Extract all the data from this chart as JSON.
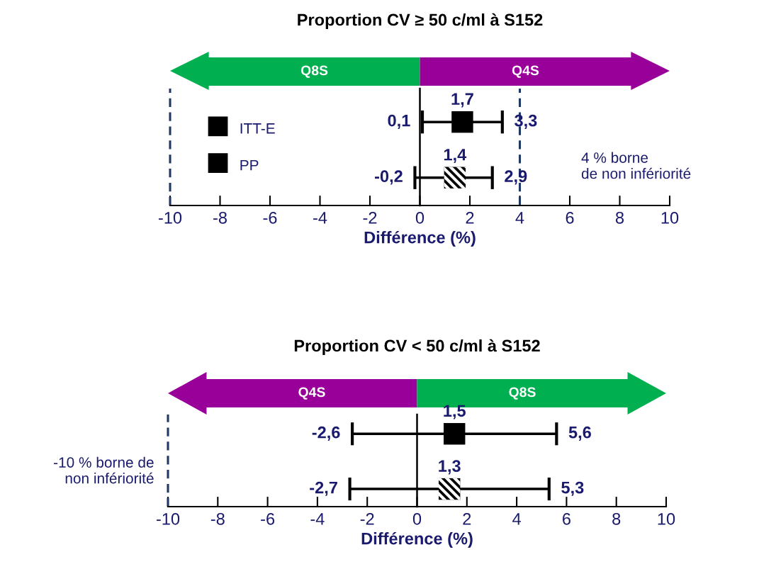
{
  "chart_data": [
    {
      "type": "scatter",
      "orientation": "horizontal",
      "title": "Proportion CV ≥ 50 c/ml à S152",
      "xlabel": "Différence (%)",
      "categories": [
        null,
        null
      ],
      "xlim": [
        -10,
        10
      ],
      "xticks": [
        -10,
        -8,
        -6,
        -4,
        -2,
        0,
        2,
        4,
        6,
        8,
        10
      ],
      "tick_labels": "x",
      "grid": false,
      "legend": "left",
      "marker": "square",
      "series": [
        {
          "name": "ITT-E",
          "color": "#000000",
          "values": [
            1.7,
            null
          ],
          "errors": [
            [
              0.1,
              3.3
            ],
            null
          ],
          "value_labels": [
            "1,7",
            null
          ]
        },
        {
          "name": "PP",
          "color": "#000000",
          "values": [
            null,
            1.4
          ],
          "errors": [
            null,
            [
              -0.2,
              2.9
            ]
          ],
          "value_labels": [
            null,
            "1,4"
          ]
        }
      ],
      "annotations": [
        {
          "text": "0,1",
          "x": 0.1
        },
        {
          "text": "3,3",
          "x": 3.3
        },
        {
          "text": "-0,2",
          "x": -0.2
        },
        {
          "text": "2,9",
          "x": 2.9
        },
        "Q8S",
        "Q4S"
      ],
      "ref_lines": [
        {
          "axis": "x",
          "value": 0,
          "color": "#000000",
          "line_style": "solid"
        },
        {
          "axis": "x",
          "value": -10,
          "color": "#1f3864",
          "line_style": "dashed"
        },
        {
          "axis": "x",
          "value": 4,
          "label": "4 % borne\nde non infériorité",
          "color": "#1f3864",
          "line_style": "dashed"
        }
      ]
    },
    {
      "type": "scatter",
      "orientation": "horizontal",
      "title": "Proportion CV < 50 c/ml à S152",
      "xlabel": "Différence (%)",
      "categories": [
        null,
        null
      ],
      "xlim": [
        -10,
        10
      ],
      "xticks": [
        -10,
        -8,
        -6,
        -4,
        -2,
        0,
        2,
        4,
        6,
        8,
        10
      ],
      "tick_labels": "x",
      "grid": false,
      "marker": "square",
      "series": [
        {
          "color": "#000000",
          "values": [
            1.5,
            null
          ],
          "errors": [
            [
              -2.6,
              5.6
            ],
            null
          ],
          "value_labels": [
            "1,5",
            null
          ]
        },
        {
          "color": "#000000",
          "values": [
            null,
            1.3
          ],
          "errors": [
            null,
            [
              -2.7,
              5.3
            ]
          ],
          "value_labels": [
            null,
            "1,3"
          ]
        }
      ],
      "annotations": [
        {
          "text": "-2,6",
          "x": -2.6
        },
        {
          "text": "5,6",
          "x": 5.6
        },
        {
          "text": "-2,7",
          "x": -2.7
        },
        {
          "text": "5,3",
          "x": 5.3
        },
        "Q4S",
        "Q8S"
      ],
      "ref_lines": [
        {
          "axis": "x",
          "value": 0,
          "color": "#000000",
          "line_style": "solid"
        },
        {
          "axis": "x",
          "value": -10,
          "label": "-10 % borne de\nnon infériorité",
          "color": "#1f3864",
          "line_style": "dashed"
        }
      ]
    }
  ]
}
